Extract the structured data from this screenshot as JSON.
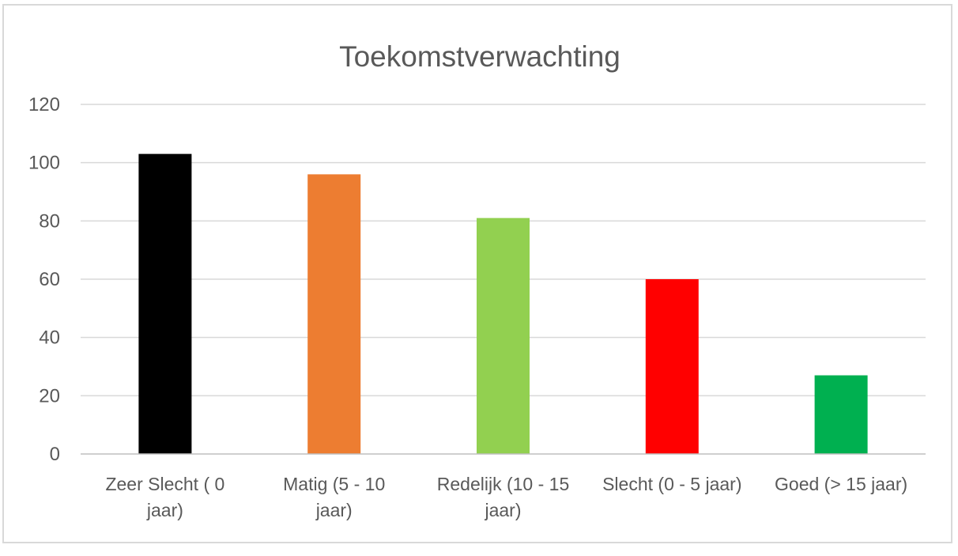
{
  "chart_data": {
    "type": "bar",
    "title": "Toekomstverwachting",
    "xlabel": "",
    "ylabel": "",
    "ylim": [
      0,
      120
    ],
    "yticks": [
      0,
      20,
      40,
      60,
      80,
      100,
      120
    ],
    "grid": true,
    "legend": "none",
    "categories": [
      [
        "Zeer Slecht ( 0",
        "jaar)"
      ],
      [
        "Matig (5 - 10",
        "jaar)"
      ],
      [
        "Redelijk (10 - 15",
        "jaar)"
      ],
      [
        "Slecht (0 - 5 jaar)"
      ],
      [
        "Goed (> 15 jaar)"
      ]
    ],
    "values": [
      103,
      96,
      81,
      60,
      27
    ],
    "colors": [
      "#000000",
      "#ed7d31",
      "#92d050",
      "#ff0000",
      "#00b050"
    ]
  }
}
